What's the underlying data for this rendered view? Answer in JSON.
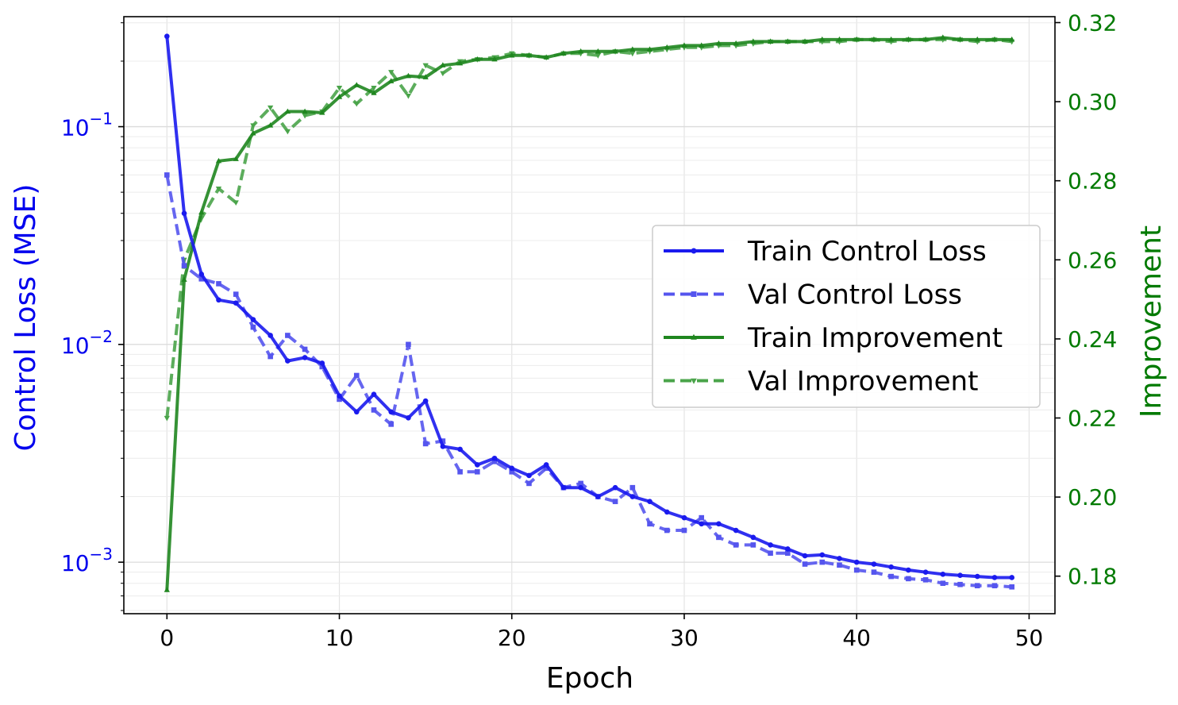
{
  "chart_data": {
    "type": "line",
    "xlabel": "Epoch",
    "y_left_label": "Control Loss (MSE)",
    "y_right_label": "Improvement",
    "y_left_scale": "log",
    "y_left_range": [
      0.00058,
      0.32
    ],
    "y_right_range": [
      0.1705,
      0.3215
    ],
    "x_range": [
      -2.5,
      51.5
    ],
    "x_ticks": [
      0,
      10,
      20,
      30,
      40,
      50
    ],
    "x_tick_labels": [
      "0",
      "10",
      "20",
      "30",
      "40",
      "50"
    ],
    "y_left_ticks": [
      {
        "value": 0.1,
        "base": "10",
        "exp": "−1"
      },
      {
        "value": 0.01,
        "base": "10",
        "exp": "−2"
      },
      {
        "value": 0.001,
        "base": "10",
        "exp": "−3"
      }
    ],
    "y_right_ticks": [
      0.18,
      0.2,
      0.22,
      0.24,
      0.26,
      0.28,
      0.3,
      0.32
    ],
    "y_right_tick_labels": [
      "0.18",
      "0.20",
      "0.22",
      "0.24",
      "0.26",
      "0.28",
      "0.30",
      "0.32"
    ],
    "grid": true,
    "legend_position": "center-right",
    "colors": {
      "loss": "#0000ee",
      "improvement": "#007a00"
    },
    "series": [
      {
        "name": "Train Control Loss",
        "axis": "left",
        "style": "solid",
        "marker": "circle",
        "color": "#1a1aee",
        "values": [
          0.26,
          0.04,
          0.021,
          0.016,
          0.0155,
          0.013,
          0.011,
          0.0084,
          0.0087,
          0.0082,
          0.0058,
          0.0049,
          0.0059,
          0.0049,
          0.0046,
          0.0055,
          0.0034,
          0.0033,
          0.0028,
          0.003,
          0.0027,
          0.0025,
          0.0028,
          0.0022,
          0.0022,
          0.002,
          0.0022,
          0.002,
          0.0019,
          0.0017,
          0.0016,
          0.0015,
          0.0015,
          0.0014,
          0.0013,
          0.0012,
          0.00115,
          0.00107,
          0.00108,
          0.00104,
          0.001,
          0.00098,
          0.00095,
          0.00092,
          0.0009,
          0.00088,
          0.00087,
          0.00086,
          0.00085,
          0.00085
        ]
      },
      {
        "name": "Val Control Loss",
        "axis": "left",
        "style": "dashed",
        "marker": "square",
        "color": "#5555ee",
        "values": [
          0.06,
          0.023,
          0.02,
          0.019,
          0.017,
          0.012,
          0.0088,
          0.011,
          0.0095,
          0.0079,
          0.0056,
          0.0072,
          0.005,
          0.0043,
          0.01,
          0.0035,
          0.0036,
          0.0026,
          0.0026,
          0.0029,
          0.0026,
          0.0023,
          0.0027,
          0.0022,
          0.0023,
          0.002,
          0.0019,
          0.0022,
          0.0015,
          0.0014,
          0.0014,
          0.0016,
          0.0013,
          0.0012,
          0.0012,
          0.0011,
          0.0011,
          0.00098,
          0.001,
          0.00097,
          0.00092,
          0.0009,
          0.00086,
          0.00084,
          0.00083,
          0.0008,
          0.00079,
          0.00078,
          0.00078,
          0.00077
        ]
      },
      {
        "name": "Train Improvement",
        "axis": "right",
        "style": "solid",
        "marker": "triangle-up",
        "color": "#1f861f",
        "values": [
          0.1765,
          0.255,
          0.272,
          0.285,
          0.2855,
          0.292,
          0.294,
          0.2975,
          0.2975,
          0.2972,
          0.3012,
          0.3042,
          0.3022,
          0.3052,
          0.3065,
          0.3062,
          0.3092,
          0.3097,
          0.3107,
          0.3107,
          0.3117,
          0.3117,
          0.3112,
          0.3122,
          0.3127,
          0.3127,
          0.3127,
          0.3132,
          0.3132,
          0.3137,
          0.3142,
          0.3142,
          0.3147,
          0.3147,
          0.3152,
          0.3152,
          0.3152,
          0.3152,
          0.3157,
          0.3157,
          0.3157,
          0.3157,
          0.3157,
          0.3157,
          0.3157,
          0.3162,
          0.3157,
          0.3157,
          0.3157,
          0.3157
        ]
      },
      {
        "name": "Val Improvement",
        "axis": "right",
        "style": "dashed",
        "marker": "triangle-down",
        "color": "#4aa44a",
        "values": [
          0.22,
          0.26,
          0.2705,
          0.278,
          0.2745,
          0.294,
          0.2985,
          0.2925,
          0.2965,
          0.2975,
          0.3035,
          0.2995,
          0.3035,
          0.3075,
          0.3015,
          0.3092,
          0.3072,
          0.3102,
          0.3107,
          0.3112,
          0.3122,
          0.3117,
          0.3112,
          0.3122,
          0.3122,
          0.3117,
          0.3127,
          0.3122,
          0.3127,
          0.3132,
          0.3137,
          0.3137,
          0.3142,
          0.3142,
          0.3147,
          0.3152,
          0.3152,
          0.3152,
          0.3152,
          0.3152,
          0.3157,
          0.3157,
          0.3152,
          0.3157,
          0.3157,
          0.3157,
          0.3157,
          0.3152,
          0.3157,
          0.3152
        ]
      }
    ]
  }
}
